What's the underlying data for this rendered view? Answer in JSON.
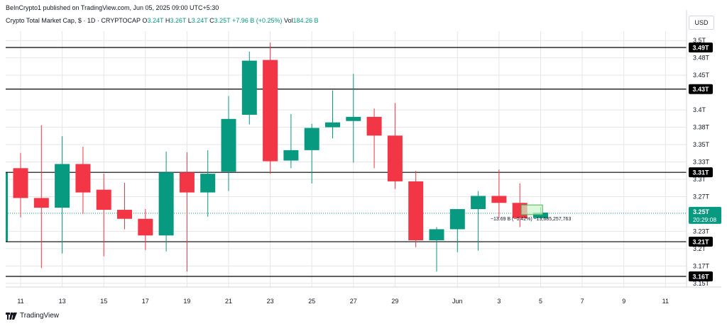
{
  "header": {
    "publish_line": "BeInCrypto1 published on TradingView.com, Jun 05, 2025 09:00 UTC+5:30",
    "symbol": "Crypto Total Market Cap, $ · 1D · CRYPTOCAP",
    "o_label": "O",
    "o_value": "3.24T",
    "h_label": "H",
    "h_value": "3.26T",
    "l_label": "L",
    "l_value": "3.24T",
    "c_label": "C",
    "c_value": "3.25T",
    "change": "+7.96 B (+0.25%)",
    "vol_label": "Vol",
    "vol_value": "184.26 B",
    "currency": "USD"
  },
  "footer": {
    "brand": "TradingView"
  },
  "colors": {
    "up": "#089981",
    "down": "#f23645",
    "hline": "#000000",
    "grid": "#e6e6e6",
    "last_price": "#089981",
    "current_bar_fill": "#ccf5cc",
    "current_bar_stroke": "#4caf50"
  },
  "chart_data": {
    "type": "candlestick",
    "title": "Crypto Total Market Cap",
    "xlabel": "",
    "ylabel": "",
    "ylim": [
      3.145,
      3.51
    ],
    "y_unit": "T USD",
    "x_ticks": [
      {
        "label": "11",
        "index": 0
      },
      {
        "label": "13",
        "index": 2
      },
      {
        "label": "15",
        "index": 4
      },
      {
        "label": "17",
        "index": 6
      },
      {
        "label": "19",
        "index": 8
      },
      {
        "label": "21",
        "index": 10
      },
      {
        "label": "23",
        "index": 12
      },
      {
        "label": "25",
        "index": 14
      },
      {
        "label": "27",
        "index": 16
      },
      {
        "label": "29",
        "index": 18
      },
      {
        "label": "Jun",
        "index": 21
      },
      {
        "label": "3",
        "index": 23
      },
      {
        "label": "5",
        "index": 25
      },
      {
        "label": "7",
        "index": 27
      },
      {
        "label": "9",
        "index": 29
      },
      {
        "label": "11",
        "index": 31
      }
    ],
    "y_ticks": [
      {
        "label": "3.5T",
        "value": 3.5
      },
      {
        "label": "3.48T",
        "value": 3.475
      },
      {
        "label": "3.45T",
        "value": 3.45
      },
      {
        "label": "3.4T",
        "value": 3.4
      },
      {
        "label": "3.38T",
        "value": 3.375
      },
      {
        "label": "3.35T",
        "value": 3.35
      },
      {
        "label": "3.33T",
        "value": 3.325
      },
      {
        "label": "3.3T",
        "value": 3.3
      },
      {
        "label": "3.27T",
        "value": 3.275
      },
      {
        "label": "3.23T",
        "value": 3.225
      },
      {
        "label": "3.2T",
        "value": 3.2
      },
      {
        "label": "3.17T",
        "value": 3.175
      },
      {
        "label": "3.15T",
        "value": 3.15
      }
    ],
    "levels": [
      {
        "label": "3.49T",
        "value": 3.49
      },
      {
        "label": "3.43T",
        "value": 3.43
      },
      {
        "label": "3.31T",
        "value": 3.31
      },
      {
        "label": "3.21T",
        "value": 3.21
      },
      {
        "label": "3.16T",
        "value": 3.16
      }
    ],
    "last_price": {
      "label": "3.25T",
      "countdown": "20:29:08",
      "value": 3.251
    },
    "annotation": "−13.69 B (−0.42%) −13,685,257,763",
    "candles": [
      {
        "date": "May 11",
        "o": 3.316,
        "h": 3.338,
        "l": 3.245,
        "c": 3.273
      },
      {
        "date": "May 12",
        "o": 3.273,
        "h": 3.378,
        "l": 3.172,
        "c": 3.259
      },
      {
        "date": "May 13",
        "o": 3.259,
        "h": 3.362,
        "l": 3.193,
        "c": 3.322
      },
      {
        "date": "May 14",
        "o": 3.322,
        "h": 3.347,
        "l": 3.25,
        "c": 3.281
      },
      {
        "date": "May 15",
        "o": 3.285,
        "h": 3.308,
        "l": 3.189,
        "c": 3.256
      },
      {
        "date": "May 16",
        "o": 3.256,
        "h": 3.295,
        "l": 3.228,
        "c": 3.243
      },
      {
        "date": "May 17",
        "o": 3.243,
        "h": 3.257,
        "l": 3.198,
        "c": 3.219
      },
      {
        "date": "May 18",
        "o": 3.219,
        "h": 3.34,
        "l": 3.196,
        "c": 3.31
      },
      {
        "date": "May 19",
        "o": 3.31,
        "h": 3.339,
        "l": 3.167,
        "c": 3.281
      },
      {
        "date": "May 20",
        "o": 3.281,
        "h": 3.342,
        "l": 3.246,
        "c": 3.308
      },
      {
        "date": "May 21",
        "o": 3.311,
        "h": 3.42,
        "l": 3.283,
        "c": 3.387
      },
      {
        "date": "May 22",
        "o": 3.393,
        "h": 3.484,
        "l": 3.379,
        "c": 3.471
      },
      {
        "date": "May 23",
        "o": 3.472,
        "h": 3.497,
        "l": 3.308,
        "c": 3.326
      },
      {
        "date": "May 24",
        "o": 3.327,
        "h": 3.394,
        "l": 3.316,
        "c": 3.342
      },
      {
        "date": "May 25",
        "o": 3.342,
        "h": 3.38,
        "l": 3.294,
        "c": 3.374
      },
      {
        "date": "May 26",
        "o": 3.375,
        "h": 3.428,
        "l": 3.359,
        "c": 3.382
      },
      {
        "date": "May 27",
        "o": 3.384,
        "h": 3.452,
        "l": 3.324,
        "c": 3.39
      },
      {
        "date": "May 28",
        "o": 3.39,
        "h": 3.402,
        "l": 3.316,
        "c": 3.363
      },
      {
        "date": "May 29",
        "o": 3.363,
        "h": 3.41,
        "l": 3.286,
        "c": 3.297
      },
      {
        "date": "May 30",
        "o": 3.297,
        "h": 3.312,
        "l": 3.202,
        "c": 3.212
      },
      {
        "date": "May 31",
        "o": 3.212,
        "h": 3.231,
        "l": 3.167,
        "c": 3.228
      },
      {
        "date": "Jun 01",
        "o": 3.228,
        "h": 3.257,
        "l": 3.195,
        "c": 3.257
      },
      {
        "date": "Jun 02",
        "o": 3.257,
        "h": 3.283,
        "l": 3.197,
        "c": 3.276
      },
      {
        "date": "Jun 03",
        "o": 3.276,
        "h": 3.314,
        "l": 3.244,
        "c": 3.266
      },
      {
        "date": "Jun 04",
        "o": 3.266,
        "h": 3.294,
        "l": 3.231,
        "c": 3.244
      },
      {
        "date": "Jun 05",
        "o": 3.244,
        "h": 3.26,
        "l": 3.244,
        "c": 3.252
      }
    ]
  }
}
